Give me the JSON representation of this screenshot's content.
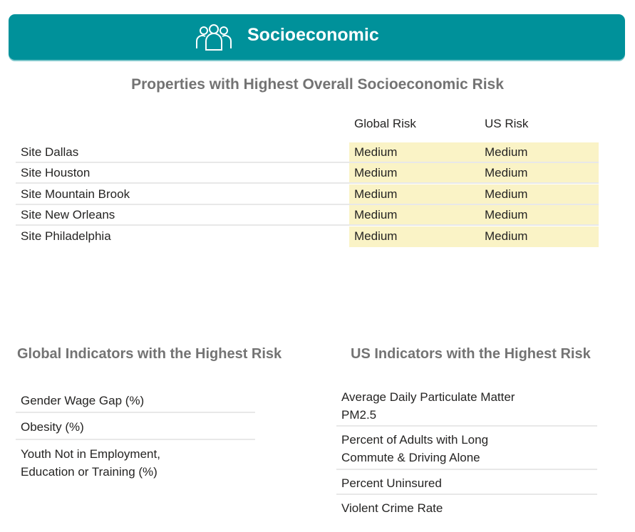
{
  "header": {
    "title": "Socioeconomic",
    "icon": "people-group-icon",
    "color": "#00919a"
  },
  "properties": {
    "title": "Properties with Highest Overall Socioeconomic Risk",
    "columns": [
      "Global Risk",
      "US Risk"
    ],
    "rows": [
      {
        "site": "Site Dallas",
        "global": "Medium",
        "us": "Medium"
      },
      {
        "site": "Site Houston",
        "global": "Medium",
        "us": "Medium"
      },
      {
        "site": "Site Mountain Brook",
        "global": "Medium",
        "us": "Medium"
      },
      {
        "site": "Site New Orleans",
        "global": "Medium",
        "us": "Medium"
      },
      {
        "site": "Site Philadelphia",
        "global": "Medium",
        "us": "Medium"
      }
    ],
    "highlight_color": "#faf3c6"
  },
  "global_indicators": {
    "title": "Global Indicators with the Highest Risk",
    "items": [
      "Gender Wage Gap (%)",
      "Obesity (%)",
      "Youth Not in Employment, Education or Training (%)"
    ]
  },
  "us_indicators": {
    "title": "US Indicators with the Highest Risk",
    "items": [
      "Average Daily Particulate Matter PM2.5",
      "Percent of Adults with Long Commute & Driving Alone",
      "Percent Uninsured",
      "Violent Crime Rate"
    ]
  }
}
